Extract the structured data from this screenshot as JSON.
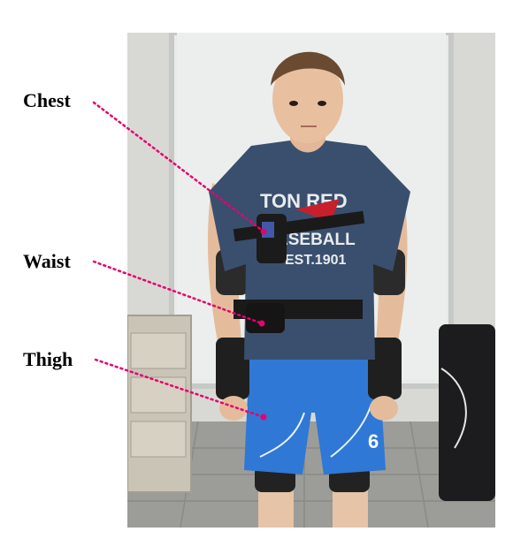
{
  "figure": {
    "labels": {
      "chest": "Chest",
      "waist": "Waist",
      "thigh": "Thigh"
    },
    "shirt_text": {
      "line1": "TON RED",
      "line2": "ASEBALL",
      "line3": "EST.1901"
    },
    "shorts_number": "6"
  },
  "colors": {
    "marker": "#e8006e",
    "shirt": "#3a4f6e",
    "shorts": "#2f78d6",
    "strap": "#1a1a1a"
  }
}
